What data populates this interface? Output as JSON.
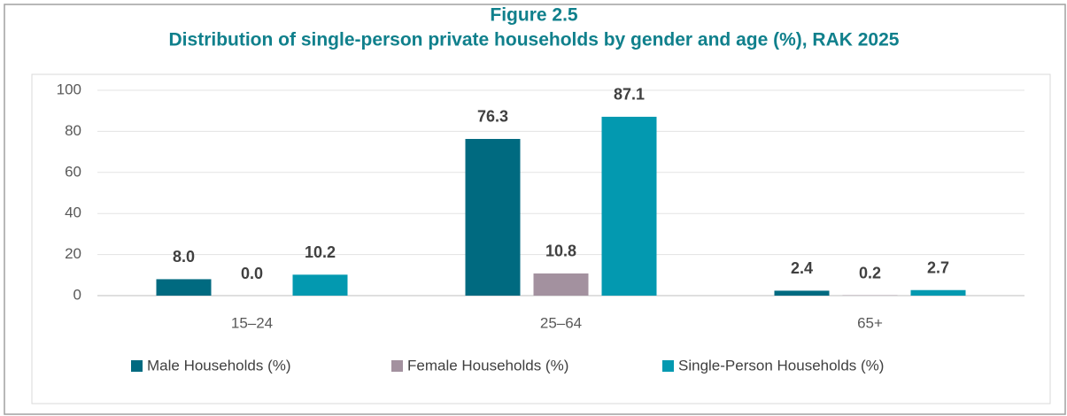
{
  "chart_data": {
    "type": "bar",
    "title": "Figure 2.5",
    "subtitle": "Distribution of single-person private households by gender and age (%), RAK 2025",
    "categories": [
      "15–24",
      "25–64",
      "65+"
    ],
    "series": [
      {
        "name": "Male Households (%)",
        "color": "#006a80",
        "values": [
          8.0,
          76.3,
          2.4
        ],
        "value_labels": [
          "8.0",
          "76.3",
          "2.4"
        ]
      },
      {
        "name": "Female Households (%)",
        "color": "#a3919f",
        "values": [
          0.0,
          10.8,
          0.2
        ],
        "value_labels": [
          "0.0",
          "10.8",
          "0.2"
        ]
      },
      {
        "name": "Single-Person Households (%)",
        "color": "#0399b0",
        "values": [
          10.2,
          87.1,
          2.7
        ],
        "value_labels": [
          "10.2",
          "87.1",
          "2.7"
        ]
      }
    ],
    "ylim": [
      0,
      100
    ],
    "yticks": [
      0,
      20,
      40,
      60,
      80,
      100
    ],
    "grid": true,
    "legend": "bottom"
  }
}
